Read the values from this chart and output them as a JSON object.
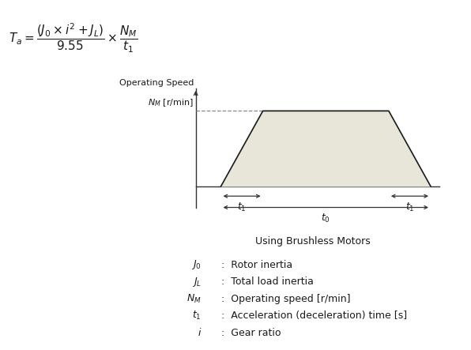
{
  "trap_fill_color": "#e8e6d8",
  "trap_edge_color": "#1a1a1a",
  "operating_speed_label": "Operating Speed",
  "nm_label": "$N_M$ [r/min]",
  "subtitle": "Using Brushless Motors",
  "legend_items": [
    [
      "$J_0$",
      ":  Rotor inertia"
    ],
    [
      "$J_L$",
      ":  Total load inertia"
    ],
    [
      "$N_M$",
      ":  Operating speed [r/min]"
    ],
    [
      "$t_1$",
      ":  Acceleration (deceleration) time [s]"
    ],
    [
      "$i$",
      ":  Gear ratio"
    ]
  ],
  "t1_label": "$t_1$",
  "t0_label": "$t_0$",
  "bg_color": "#ffffff",
  "axis_color": "#333333",
  "dashed_color": "#888888",
  "arrow_color": "#333333",
  "text_color": "#1a1a1a",
  "fontsize_formula": 11,
  "fontsize_legend": 9,
  "fontsize_subtitle": 9,
  "fontsize_diagram": 9
}
